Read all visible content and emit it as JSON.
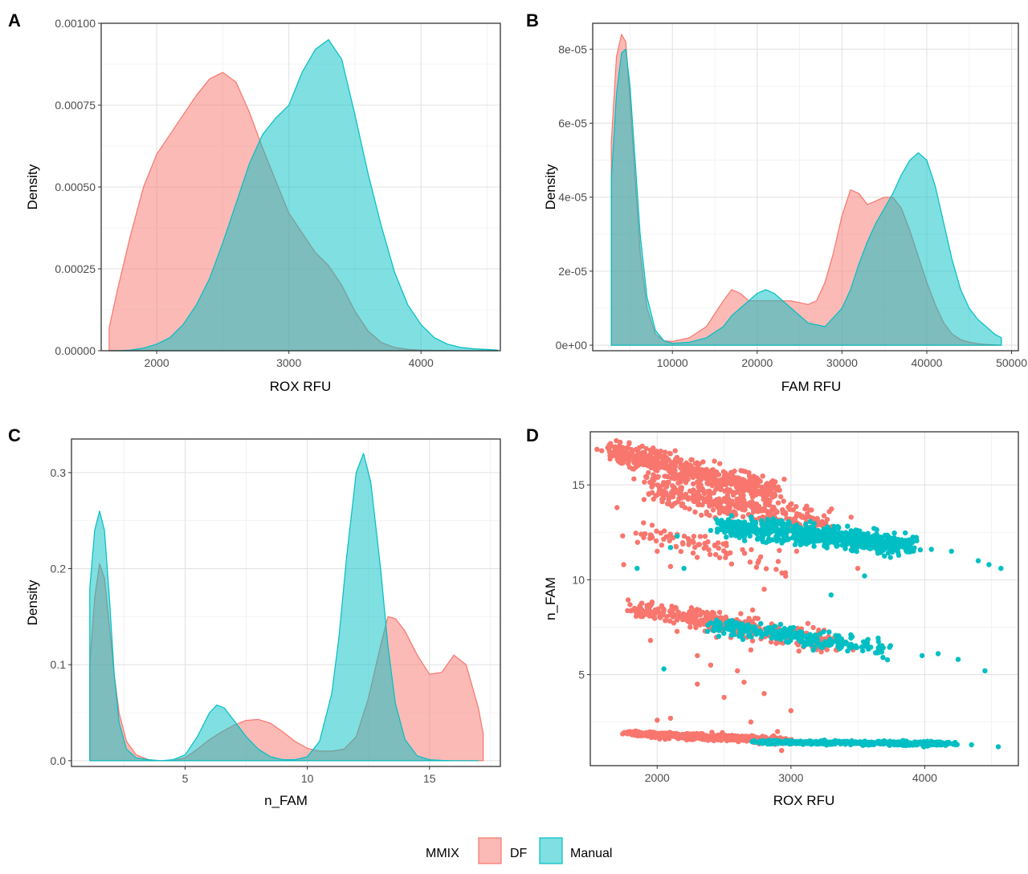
{
  "legend": {
    "title": "MMIX",
    "items": [
      {
        "label": "DF",
        "color": "#F8766D"
      },
      {
        "label": "Manual",
        "color": "#00BFC4"
      }
    ]
  },
  "chart_data": [
    {
      "panel": "A",
      "type": "area",
      "xlabel": "ROX RFU",
      "ylabel": "Density",
      "xlim": [
        1580,
        4600
      ],
      "ylim": [
        0,
        0.001
      ],
      "xticks": [
        2000,
        3000,
        4000
      ],
      "xtick_labels": [
        "2000",
        "3000",
        "4000"
      ],
      "yticks": [
        0,
        0.00025,
        0.0005,
        0.00075,
        0.001
      ],
      "ytick_labels": [
        "0.00000",
        "0.00025",
        "0.00050",
        "0.00075",
        "0.00100"
      ],
      "grid": true,
      "series": [
        {
          "name": "DF",
          "x": [
            1640,
            1700,
            1800,
            1900,
            2000,
            2100,
            2200,
            2300,
            2400,
            2500,
            2600,
            2700,
            2800,
            2900,
            3000,
            3100,
            3200,
            3300,
            3400,
            3500,
            3600,
            3700,
            3800,
            3900,
            4000,
            4100,
            4200,
            4300,
            4400,
            4500,
            4580
          ],
          "y": [
            7e-05,
            0.00018,
            0.00035,
            0.0005,
            0.0006,
            0.00066,
            0.00072,
            0.00078,
            0.00083,
            0.00085,
            0.00082,
            0.00073,
            0.00062,
            0.00052,
            0.00042,
            0.00036,
            0.0003,
            0.00026,
            0.0002,
            0.00012,
            6e-05,
            2.5e-05,
            1e-05,
            4e-06,
            2e-06,
            1e-06,
            1e-06,
            0,
            0,
            0,
            0
          ]
        },
        {
          "name": "Manual",
          "x": [
            1640,
            1700,
            1800,
            1900,
            2000,
            2100,
            2200,
            2300,
            2400,
            2500,
            2600,
            2700,
            2800,
            2900,
            3000,
            3100,
            3200,
            3300,
            3400,
            3500,
            3600,
            3700,
            3800,
            3900,
            4000,
            4100,
            4200,
            4300,
            4400,
            4500,
            4580
          ],
          "y": [
            0,
            0,
            2e-06,
            8e-06,
            2e-05,
            4e-05,
            8e-05,
            0.00014,
            0.00022,
            0.00033,
            0.00045,
            0.00057,
            0.00066,
            0.00071,
            0.00075,
            0.00085,
            0.00092,
            0.00095,
            0.00089,
            0.00072,
            0.00054,
            0.00038,
            0.00024,
            0.00014,
            8e-05,
            4e-05,
            2e-05,
            1e-05,
            6e-06,
            4e-06,
            2e-06
          ]
        }
      ]
    },
    {
      "panel": "B",
      "type": "area",
      "xlabel": "FAM RFU",
      "ylabel": "Density",
      "xlim": [
        600,
        50800
      ],
      "ylim": [
        -1.5e-06,
        8.7e-05
      ],
      "xticks": [
        10000,
        20000,
        30000,
        40000,
        50000
      ],
      "xtick_labels": [
        "10000",
        "20000",
        "30000",
        "40000",
        "50000"
      ],
      "yticks": [
        0,
        2e-05,
        4e-05,
        6e-05,
        8e-05
      ],
      "ytick_labels": [
        "0e+00",
        "2e-05",
        "4e-05",
        "6e-05",
        "8e-05"
      ],
      "grid": true,
      "series": [
        {
          "name": "DF",
          "x": [
            2800,
            3400,
            4000,
            4500,
            5000,
            5600,
            6200,
            7000,
            8000,
            9000,
            10000,
            12000,
            14000,
            16000,
            17000,
            18000,
            19000,
            20000,
            22000,
            24000,
            26000,
            27000,
            28000,
            29000,
            30000,
            31000,
            32000,
            33000,
            34000,
            35000,
            36000,
            37000,
            38000,
            39000,
            40000,
            41000,
            42000,
            43000,
            44000,
            45000,
            46000,
            47000,
            48000,
            48800
          ],
          "y": [
            5.5e-05,
            7.8e-05,
            8.4e-05,
            8.2e-05,
            6.6e-05,
            4.5e-05,
            2.5e-05,
            1e-05,
            3e-06,
            1.2e-06,
            1e-06,
            2e-06,
            5e-06,
            1.2e-05,
            1.5e-05,
            1.4e-05,
            1.2e-05,
            1.2e-05,
            1.2e-05,
            1.2e-05,
            1.1e-05,
            1.2e-05,
            1.7e-05,
            2.5e-05,
            3.5e-05,
            4.2e-05,
            4.1e-05,
            3.8e-05,
            3.9e-05,
            4e-05,
            4e-05,
            3.7e-05,
            3.1e-05,
            2.4e-05,
            1.7e-05,
            1.1e-05,
            6e-06,
            3e-06,
            1.5e-06,
            8e-07,
            4e-07,
            2e-07,
            1e-07,
            0
          ]
        },
        {
          "name": "Manual",
          "x": [
            2800,
            3400,
            4000,
            4500,
            5000,
            5600,
            6200,
            7000,
            8000,
            9000,
            10000,
            12000,
            14000,
            16000,
            17000,
            18000,
            19000,
            20000,
            21000,
            22000,
            24000,
            26000,
            28000,
            30000,
            31000,
            32000,
            33000,
            34000,
            35000,
            36000,
            37000,
            38000,
            39000,
            40000,
            41000,
            42000,
            43000,
            44000,
            45000,
            46000,
            47000,
            48000,
            48800
          ],
          "y": [
            4.5e-05,
            6.8e-05,
            7.9e-05,
            8e-05,
            7e-05,
            5e-05,
            3e-05,
            1.3e-05,
            4e-06,
            1.2e-06,
            5e-07,
            8e-07,
            2e-06,
            5e-06,
            8e-06,
            1e-05,
            1.2e-05,
            1.4e-05,
            1.5e-05,
            1.4e-05,
            1e-05,
            6e-06,
            5e-06,
            1e-05,
            1.5e-05,
            2.2e-05,
            2.8e-05,
            3.3e-05,
            3.7e-05,
            4.1e-05,
            4.6e-05,
            5e-05,
            5.2e-05,
            5e-05,
            4.3e-05,
            3.3e-05,
            2.3e-05,
            1.5e-05,
            1e-05,
            7e-06,
            5e-06,
            3e-06,
            2e-06
          ]
        }
      ]
    },
    {
      "panel": "C",
      "type": "area",
      "xlabel": "n_FAM",
      "ylabel": "Density",
      "xlim": [
        0.35,
        17.9
      ],
      "ylim": [
        -0.006,
        0.335
      ],
      "xticks": [
        5,
        10,
        15
      ],
      "xtick_labels": [
        "5",
        "10",
        "15"
      ],
      "yticks": [
        0,
        0.1,
        0.2,
        0.3
      ],
      "ytick_labels": [
        "0.0",
        "0.1",
        "0.2",
        "0.3"
      ],
      "grid": true,
      "series": [
        {
          "name": "DF",
          "x": [
            1.1,
            1.3,
            1.5,
            1.7,
            1.9,
            2.1,
            2.3,
            2.6,
            3.0,
            3.5,
            4.0,
            4.5,
            5.0,
            5.5,
            6.0,
            6.5,
            7.0,
            7.5,
            8.0,
            8.5,
            9.0,
            9.5,
            10.0,
            10.5,
            11.0,
            11.5,
            12.0,
            12.5,
            13.0,
            13.3,
            13.6,
            14.0,
            14.5,
            15.0,
            15.5,
            16.0,
            16.5,
            17.0,
            17.2
          ],
          "y": [
            0.1,
            0.17,
            0.205,
            0.19,
            0.14,
            0.09,
            0.05,
            0.02,
            0.006,
            0.001,
            0,
            0,
            0.003,
            0.012,
            0.022,
            0.03,
            0.037,
            0.042,
            0.043,
            0.039,
            0.03,
            0.02,
            0.013,
            0.01,
            0.01,
            0.012,
            0.025,
            0.065,
            0.12,
            0.15,
            0.148,
            0.135,
            0.11,
            0.09,
            0.092,
            0.11,
            0.1,
            0.055,
            0.028
          ]
        },
        {
          "name": "Manual",
          "x": [
            1.1,
            1.3,
            1.5,
            1.7,
            1.9,
            2.1,
            2.3,
            2.6,
            3.0,
            3.5,
            4.0,
            4.5,
            5.0,
            5.5,
            6.0,
            6.3,
            6.6,
            7.0,
            7.5,
            8.0,
            8.5,
            9.0,
            9.5,
            10.0,
            10.5,
            11.0,
            11.3,
            11.6,
            12.0,
            12.3,
            12.6,
            13.0,
            13.3,
            13.6,
            14.0,
            14.5,
            15.0,
            15.5,
            16.0,
            17.0
          ],
          "y": [
            0.18,
            0.24,
            0.26,
            0.24,
            0.17,
            0.09,
            0.04,
            0.012,
            0.003,
            0.001,
            0,
            0.001,
            0.006,
            0.025,
            0.05,
            0.058,
            0.055,
            0.042,
            0.025,
            0.012,
            0.004,
            0.001,
            0.001,
            0.004,
            0.02,
            0.07,
            0.13,
            0.21,
            0.3,
            0.32,
            0.29,
            0.2,
            0.12,
            0.06,
            0.022,
            0.005,
            0.001,
            0.0003,
            0,
            0
          ]
        }
      ]
    },
    {
      "panel": "D",
      "type": "scatter",
      "xlabel": "ROX RFU",
      "ylabel": "n_FAM",
      "xlim": [
        1500,
        4700
      ],
      "ylim": [
        0.2,
        17.8
      ],
      "xticks": [
        2000,
        3000,
        4000
      ],
      "xtick_labels": [
        "2000",
        "3000",
        "4000"
      ],
      "yticks": [
        5,
        10,
        15
      ],
      "ytick_labels": [
        "5",
        "10",
        "15"
      ],
      "grid": true,
      "series": [
        {
          "name": "DF",
          "clusters": [
            {
              "x_from": 1650,
              "x_to": 2900,
              "y_from": 16.8,
              "y_to": 14.6,
              "spread": 0.55,
              "n": 520
            },
            {
              "x_from": 1900,
              "x_to": 3300,
              "y_from": 15.0,
              "y_to": 12.8,
              "spread": 0.8,
              "n": 380
            },
            {
              "x_from": 1800,
              "x_to": 3000,
              "y_from": 12.5,
              "y_to": 10.8,
              "spread": 0.6,
              "n": 80
            },
            {
              "x_from": 1800,
              "x_to": 2700,
              "y_from": 8.5,
              "y_to": 7.5,
              "spread": 0.4,
              "n": 200
            },
            {
              "x_from": 2200,
              "x_to": 3400,
              "y_from": 8.0,
              "y_to": 6.5,
              "spread": 0.7,
              "n": 160
            },
            {
              "x_from": 1800,
              "x_to": 3000,
              "y_from": 1.9,
              "y_to": 1.5,
              "spread": 0.15,
              "n": 700
            }
          ],
          "scattered": [
            [
              2300,
              4.5
            ],
            [
              2500,
              3.8
            ],
            [
              2600,
              5.2
            ],
            [
              2800,
              4.0
            ],
            [
              3000,
              3.1
            ],
            [
              2700,
              2.5
            ],
            [
              2900,
              2.0
            ],
            [
              2650,
              4.6
            ],
            [
              2400,
              5.5
            ],
            [
              2560,
              1.8
            ],
            [
              2100,
              2.7
            ],
            [
              2000,
              2.6
            ],
            [
              2930,
              1.0
            ],
            [
              2700,
              6.3
            ],
            [
              2300,
              6.0
            ],
            [
              1950,
              6.8
            ],
            [
              2000,
              11.5
            ],
            [
              2100,
              10.7
            ],
            [
              1750,
              10.8
            ],
            [
              1700,
              13.8
            ],
            [
              1880,
              12.4
            ],
            [
              2950,
              15.3
            ],
            [
              3450,
              13.3
            ],
            [
              3500,
              10.6
            ],
            [
              2800,
              9.5
            ]
          ]
        },
        {
          "name": "Manual",
          "clusters": [
            {
              "x_from": 2500,
              "x_to": 3900,
              "y_from": 12.8,
              "y_to": 11.8,
              "spread": 0.5,
              "n": 720
            },
            {
              "x_from": 2400,
              "x_to": 3700,
              "y_from": 7.6,
              "y_to": 6.4,
              "spread": 0.5,
              "n": 260
            },
            {
              "x_from": 2750,
              "x_to": 4200,
              "y_from": 1.45,
              "y_to": 1.35,
              "spread": 0.1,
              "n": 500
            }
          ],
          "scattered": [
            [
              4050,
              11.6
            ],
            [
              4200,
              11.5
            ],
            [
              4400,
              11.0
            ],
            [
              4480,
              10.8
            ],
            [
              4570,
              10.6
            ],
            [
              4450,
              5.2
            ],
            [
              4100,
              6.1
            ],
            [
              4250,
              5.8
            ],
            [
              3980,
              6.0
            ],
            [
              4350,
              1.3
            ],
            [
              4550,
              1.2
            ],
            [
              2150,
              12.3
            ],
            [
              2200,
              10.6
            ],
            [
              1850,
              10.6
            ],
            [
              2050,
              5.3
            ],
            [
              2400,
              12.6
            ],
            [
              3300,
              9.2
            ],
            [
              3550,
              10.2
            ],
            [
              2100,
              11.7
            ],
            [
              3650,
              11.4
            ]
          ]
        }
      ]
    }
  ]
}
